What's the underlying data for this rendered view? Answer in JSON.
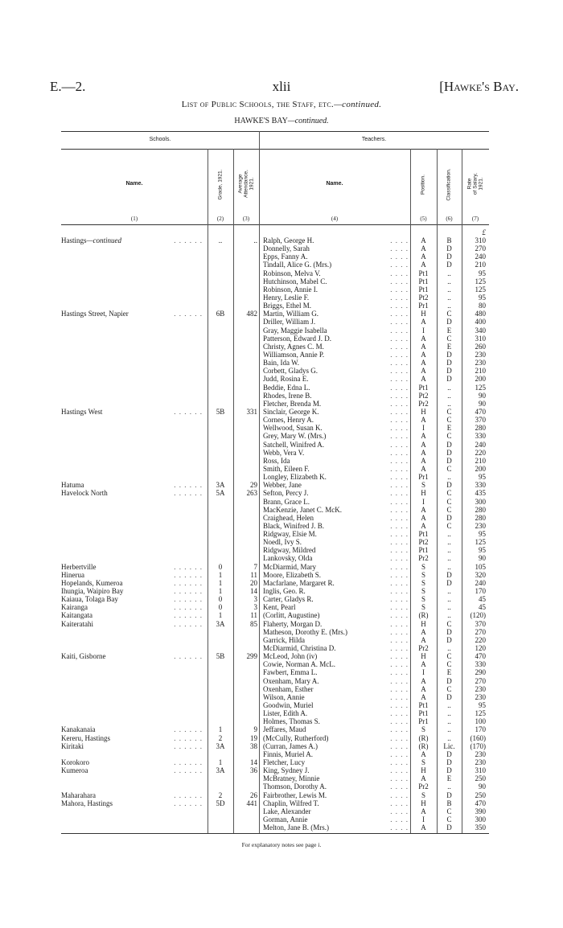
{
  "header": {
    "left": "E.—2.",
    "center": "xlii",
    "right": "[Hawke's Bay."
  },
  "title": {
    "main": "List of Public Schools, the Staff, etc.",
    "suffix": "—continued."
  },
  "subtitle": {
    "main": "HAWKE'S BAY",
    "suffix": "—continued."
  },
  "groups": {
    "schools": "Schools.",
    "teachers": "Teachers."
  },
  "columns": {
    "school_name": "Name.",
    "grade": "Grade, 1921.",
    "attendance": "Average\nAttendance,\n1921.",
    "teacher_name": "Name.",
    "position": "Position.",
    "classification": "Classification.",
    "salary": "Rate\nof Salary,\n1921."
  },
  "column_numbers": [
    "(1)",
    "(2)",
    "(3)",
    "(4)",
    "(5)",
    "(6)",
    "(7)"
  ],
  "salary_unit": "£",
  "rows": [
    {
      "school": "Hastings",
      "school_suffix": "—continued",
      "grade": "..",
      "att": "..",
      "teacher": "Ralph, George H.",
      "pos": "A",
      "cls": "B",
      "sal": "310"
    },
    {
      "teacher": "Donnelly, Sarah",
      "pos": "A",
      "cls": "D",
      "sal": "270"
    },
    {
      "teacher": "Epps, Fanny A.",
      "pos": "A",
      "cls": "D",
      "sal": "240"
    },
    {
      "teacher": "Tindall, Alice G. (Mrs.)",
      "pos": "A",
      "cls": "D",
      "sal": "210"
    },
    {
      "teacher": "Robinson, Melva V.",
      "pos": "Pt1",
      "cls": "..",
      "sal": "95"
    },
    {
      "teacher": "Hutchinson, Mabel C.",
      "pos": "Pt1",
      "cls": "..",
      "sal": "125"
    },
    {
      "teacher": "Robinson, Annie I.",
      "pos": "Pt1",
      "cls": "..",
      "sal": "125"
    },
    {
      "teacher": "Henry, Leslie F.",
      "pos": "Pt2",
      "cls": "..",
      "sal": "95"
    },
    {
      "teacher": "Briggs, Ethel M.",
      "pos": "Pr1",
      "cls": "..",
      "sal": "80"
    },
    {
      "school": "Hastings Street, Napier",
      "grade": "6B",
      "att": "482",
      "teacher": "Martin, William G.",
      "pos": "H",
      "cls": "C",
      "sal": "480"
    },
    {
      "teacher": "Driller, William J.",
      "pos": "A",
      "cls": "D",
      "sal": "400"
    },
    {
      "teacher": "Gray, Maggie Isabella",
      "pos": "I",
      "cls": "E",
      "sal": "340"
    },
    {
      "teacher": "Patterson, Edward J. D.",
      "pos": "A",
      "cls": "C",
      "sal": "310"
    },
    {
      "teacher": "Christy, Agnes C. M.",
      "pos": "A",
      "cls": "E",
      "sal": "260"
    },
    {
      "teacher": "Williamson, Annie P.",
      "pos": "A",
      "cls": "D",
      "sal": "230"
    },
    {
      "teacher": "Bain, Ida W.",
      "pos": "A",
      "cls": "D",
      "sal": "230"
    },
    {
      "teacher": "Corbett, Gladys G.",
      "pos": "A",
      "cls": "D",
      "sal": "210"
    },
    {
      "teacher": "Judd, Rosina E.",
      "pos": "A",
      "cls": "D",
      "sal": "200"
    },
    {
      "teacher": "Beddie, Edna L.",
      "pos": "Pt1",
      "cls": "..",
      "sal": "125"
    },
    {
      "teacher": "Rhodes, Irene B.",
      "pos": "Pt2",
      "cls": "..",
      "sal": "90"
    },
    {
      "teacher": "Fletcher, Brenda M.",
      "pos": "Pr2",
      "cls": "..",
      "sal": "90"
    },
    {
      "school": "Hastings West",
      "grade": "5B",
      "att": "331",
      "teacher": "Sinclair, George K.",
      "pos": "H",
      "cls": "C",
      "sal": "470"
    },
    {
      "teacher": "Cornes, Henry A.",
      "pos": "A",
      "cls": "C",
      "sal": "370"
    },
    {
      "teacher": "Wellwood, Susan K.",
      "pos": "I",
      "cls": "E",
      "sal": "280"
    },
    {
      "teacher": "Grey, Mary W. (Mrs.)",
      "pos": "A",
      "cls": "C",
      "sal": "330"
    },
    {
      "teacher": "Satchell, Winifred A.",
      "pos": "A",
      "cls": "D",
      "sal": "240"
    },
    {
      "teacher": "Webb, Vera V.",
      "pos": "A",
      "cls": "D",
      "sal": "220"
    },
    {
      "teacher": "Ross, Ida",
      "pos": "A",
      "cls": "D",
      "sal": "210"
    },
    {
      "teacher": "Smith, Eileen F.",
      "pos": "A",
      "cls": "C",
      "sal": "200"
    },
    {
      "teacher": "Longley, Elizabeth K.",
      "pos": "Pr1",
      "cls": "..",
      "sal": "95"
    },
    {
      "school": "Hatuma",
      "grade": "3A",
      "att": "29",
      "teacher": "Webber, Jane",
      "pos": "S",
      "cls": "D",
      "sal": "330"
    },
    {
      "school": "Havelock North",
      "grade": "5A",
      "att": "263",
      "teacher": "Sefton, Percy J.",
      "pos": "H",
      "cls": "C",
      "sal": "435"
    },
    {
      "teacher": "Brann, Grace L.",
      "pos": "I",
      "cls": "C",
      "sal": "300"
    },
    {
      "teacher": "MacKenzie, Janet C. McK.",
      "pos": "A",
      "cls": "C",
      "sal": "280"
    },
    {
      "teacher": "Craighead, Helen",
      "pos": "A",
      "cls": "D",
      "sal": "280"
    },
    {
      "teacher": "Black, Winifred J. B.",
      "pos": "A",
      "cls": "C",
      "sal": "230"
    },
    {
      "teacher": "Ridgway, Elsie M.",
      "pos": "Pt1",
      "cls": "..",
      "sal": "95"
    },
    {
      "teacher": "Noedl, Ivy S.",
      "pos": "Pt2",
      "cls": "..",
      "sal": "125"
    },
    {
      "teacher": "Ridgway, Mildred",
      "pos": "Pt1",
      "cls": "..",
      "sal": "95"
    },
    {
      "teacher": "Lankovsky, Olda",
      "pos": "Pr2",
      "cls": "..",
      "sal": "90"
    },
    {
      "school": "Herbertville",
      "grade": "0",
      "att": "7",
      "teacher": "McDiarmid, Mary",
      "pos": "S",
      "cls": "..",
      "sal": "105"
    },
    {
      "school": "Hinerua",
      "grade": "1",
      "att": "11",
      "teacher": "Moore, Elizabeth S.",
      "pos": "S",
      "cls": "D",
      "sal": "320"
    },
    {
      "school": "Hopelands, Kumeroa",
      "grade": "1",
      "att": "20",
      "teacher": "Macfarlane, Margaret R.",
      "pos": "S",
      "cls": "D",
      "sal": "240"
    },
    {
      "school": "Ihungia, Waipiro Bay",
      "grade": "1",
      "att": "14",
      "teacher": "Inglis, Geo. R.",
      "pos": "S",
      "cls": "..",
      "sal": "170"
    },
    {
      "school": "Kaiaua, Tolaga Bay",
      "grade": "0",
      "att": "3",
      "teacher": "Carter, Gladys R.",
      "pos": "S",
      "cls": "..",
      "sal": "45"
    },
    {
      "school": "Kairanga",
      "grade": "0",
      "att": "3",
      "teacher": "Kent, Pearl",
      "pos": "S",
      "cls": "..",
      "sal": "45"
    },
    {
      "school": "Kaitangata",
      "grade": "1",
      "att": "11",
      "teacher": "(Corlitt, Augustine)",
      "pos": "(R)",
      "cls": "..",
      "sal": "(120)"
    },
    {
      "school": "Kaiteratahi",
      "grade": "3A",
      "att": "85",
      "teacher": "Flaherty, Morgan D.",
      "pos": "H",
      "cls": "C",
      "sal": "370"
    },
    {
      "teacher": "Matheson, Dorothy E. (Mrs.)",
      "pos": "A",
      "cls": "D",
      "sal": "270"
    },
    {
      "teacher": "Garrick, Hilda",
      "pos": "A",
      "cls": "D",
      "sal": "220"
    },
    {
      "teacher": "McDiarmid, Christina D.",
      "pos": "Pr2",
      "cls": "..",
      "sal": "120"
    },
    {
      "school": "Kaiti, Gisborne",
      "grade": "5B",
      "att": "299",
      "teacher": "McLeod, John (iv)",
      "pos": "H",
      "cls": "C",
      "sal": "470"
    },
    {
      "teacher": "Cowie, Norman A. McL.",
      "pos": "A",
      "cls": "C",
      "sal": "330"
    },
    {
      "teacher": "Fawbert, Emma L.",
      "pos": "I",
      "cls": "E",
      "sal": "290"
    },
    {
      "teacher": "Oxenham, Mary A.",
      "pos": "A",
      "cls": "D",
      "sal": "270"
    },
    {
      "teacher": "Oxenham, Esther",
      "pos": "A",
      "cls": "C",
      "sal": "230"
    },
    {
      "teacher": "Wilson, Annie",
      "pos": "A",
      "cls": "D",
      "sal": "230"
    },
    {
      "teacher": "Goodwin, Muriel",
      "pos": "Pt1",
      "cls": "..",
      "sal": "95"
    },
    {
      "teacher": "Lister, Edith A.",
      "pos": "Pt1",
      "cls": "..",
      "sal": "125"
    },
    {
      "teacher": "Holmes, Thomas S.",
      "pos": "Pr1",
      "cls": "..",
      "sal": "100"
    },
    {
      "school": "Kanakanaia",
      "grade": "1",
      "att": "9",
      "teacher": "Jeffares, Maud",
      "pos": "S",
      "cls": "..",
      "sal": "170"
    },
    {
      "school": "Kereru, Hastings",
      "grade": "2",
      "att": "19",
      "teacher": "(McCully, Rutherford)",
      "pos": "(R)",
      "cls": "..",
      "sal": "(160)"
    },
    {
      "school": "Kiritaki",
      "grade": "3A",
      "att": "38",
      "teacher": "(Curran, James A.)",
      "pos": "(R)",
      "cls": "Lic.",
      "sal": "(170)"
    },
    {
      "teacher": "Finnis, Muriel A.",
      "pos": "A",
      "cls": "D",
      "sal": "230"
    },
    {
      "school": "Korokoro",
      "grade": "1",
      "att": "14",
      "teacher": "Fletcher, Lucy",
      "pos": "S",
      "cls": "D",
      "sal": "230"
    },
    {
      "school": "Kumeroa",
      "grade": "3A",
      "att": "36",
      "teacher": "King, Sydney J.",
      "pos": "H",
      "cls": "D",
      "sal": "310"
    },
    {
      "teacher": "McBratney, Minnie",
      "pos": "A",
      "cls": "E",
      "sal": "250"
    },
    {
      "teacher": "Thomson, Dorothy A.",
      "pos": "Pr2",
      "cls": "..",
      "sal": "90"
    },
    {
      "school": "Maharahara",
      "grade": "2",
      "att": "26",
      "teacher": "Fairbrother, Lewis M.",
      "pos": "S",
      "cls": "D",
      "sal": "250"
    },
    {
      "school": "Mahora, Hastings",
      "grade": "5D",
      "att": "441",
      "teacher": "Chaplin, Wilfred T.",
      "pos": "H",
      "cls": "B",
      "sal": "470"
    },
    {
      "teacher": "Lake, Alexander",
      "pos": "A",
      "cls": "C",
      "sal": "390"
    },
    {
      "teacher": "Gorman, Annie",
      "pos": "I",
      "cls": "C",
      "sal": "300"
    },
    {
      "teacher": "Melton, Jane B. (Mrs.)",
      "pos": "A",
      "cls": "D",
      "sal": "350"
    }
  ],
  "footer": "For explanatory notes see page i."
}
